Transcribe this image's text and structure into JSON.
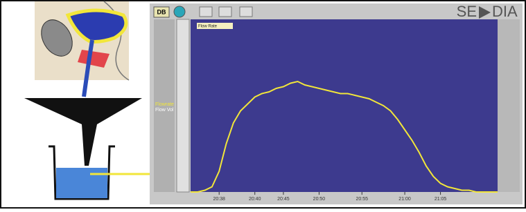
{
  "toolbar": {
    "db_button": "DB"
  },
  "logo": {
    "left": "SE",
    "right": "DIA"
  },
  "side_labels": {
    "flowrate": "Flowrate",
    "flow_volume": "Flow Vol"
  },
  "chart_data": {
    "type": "line",
    "legend": "Flow Rate",
    "color": "#f2e63a",
    "values": [
      0,
      0,
      1,
      3,
      12,
      28,
      40,
      47,
      51,
      55,
      57,
      58,
      60,
      61,
      63,
      64,
      62,
      61,
      60,
      59,
      58,
      57,
      57,
      56,
      55,
      54,
      52,
      50,
      47,
      42,
      36,
      30,
      23,
      15,
      9,
      5,
      3,
      2,
      1,
      1,
      0,
      0,
      0,
      0
    ],
    "ylim": [
      0,
      100
    ],
    "xticks": [
      {
        "value": 4,
        "label": "20:38"
      },
      {
        "value": 9,
        "label": "20:40"
      },
      {
        "value": 13,
        "label": "20:45"
      },
      {
        "value": 18,
        "label": "20:50"
      },
      {
        "value": 24,
        "label": "20:55"
      },
      {
        "value": 30,
        "label": "21:00"
      },
      {
        "value": 35,
        "label": "21:05"
      }
    ]
  }
}
